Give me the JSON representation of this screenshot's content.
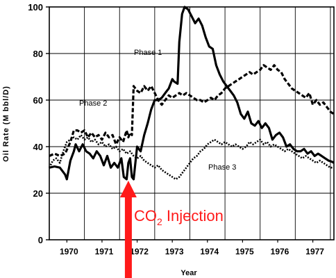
{
  "chart_data": {
    "type": "line",
    "xlabel": "Year",
    "ylabel": "Oil Rate (M bbl/D)",
    "xlim": [
      1969.5,
      1977.6
    ],
    "ylim": [
      0,
      100
    ],
    "grid": true,
    "x_tick_labels": [
      "1970",
      "1971",
      "1972",
      "1973",
      "1974",
      "1975",
      "1976",
      "1977"
    ],
    "y_tick_labels": [
      "0",
      "20",
      "40",
      "60",
      "80",
      "100"
    ],
    "series": [
      {
        "name": "Phase 1",
        "style": "solid",
        "color": "#000000",
        "x": [
          1969.5,
          1969.65,
          1969.8,
          1969.95,
          1970.0,
          1970.1,
          1970.2,
          1970.25,
          1970.35,
          1970.45,
          1970.55,
          1970.65,
          1970.75,
          1970.85,
          1970.95,
          1971.05,
          1971.15,
          1971.25,
          1971.35,
          1971.45,
          1971.55,
          1971.62,
          1971.7,
          1971.75,
          1971.8,
          1971.85,
          1971.9,
          1972.0,
          1972.1,
          1972.2,
          1972.3,
          1972.4,
          1972.5,
          1972.6,
          1972.7,
          1972.8,
          1972.9,
          1973.0,
          1973.05,
          1973.15,
          1973.2,
          1973.28,
          1973.35,
          1973.45,
          1973.55,
          1973.65,
          1973.75,
          1973.85,
          1973.95,
          1974.05,
          1974.15,
          1974.25,
          1974.35,
          1974.45,
          1974.55,
          1974.65,
          1974.75,
          1974.85,
          1974.95,
          1975.05,
          1975.15,
          1975.25,
          1975.35,
          1975.45,
          1975.55,
          1975.65,
          1975.75,
          1975.85,
          1975.95,
          1976.05,
          1976.15,
          1976.25,
          1976.35,
          1976.45,
          1976.55,
          1976.65,
          1976.75,
          1976.85,
          1976.95,
          1977.05,
          1977.15,
          1977.25,
          1977.35,
          1977.45,
          1977.55,
          1977.6
        ],
        "y": [
          31,
          31.5,
          31,
          28,
          26,
          34,
          38,
          41,
          38,
          41,
          38,
          37,
          35,
          38,
          36,
          32,
          36,
          31,
          33,
          31,
          35,
          27,
          26,
          33,
          35,
          27,
          26,
          40,
          38,
          45,
          50,
          56,
          60,
          60,
          61,
          63,
          65,
          69,
          68,
          67,
          85,
          97,
          100,
          99,
          96,
          93,
          95,
          92,
          87,
          83,
          82,
          75,
          71,
          68,
          66,
          64,
          62,
          59,
          54,
          52,
          55,
          50,
          49,
          51,
          48,
          50,
          48,
          43,
          45,
          46,
          44,
          40,
          41,
          39,
          38,
          38,
          39,
          37,
          38,
          36,
          37,
          36,
          35,
          34,
          33.5,
          33
        ]
      },
      {
        "name": "Phase 2",
        "style": "dashed",
        "color": "#000000",
        "x": [
          1969.5,
          1969.65,
          1969.8,
          1969.95,
          1970.1,
          1970.2,
          1970.3,
          1970.4,
          1970.5,
          1970.6,
          1970.7,
          1970.8,
          1970.9,
          1971.0,
          1971.1,
          1971.2,
          1971.3,
          1971.4,
          1971.5,
          1971.6,
          1971.7,
          1971.75,
          1971.8,
          1971.85,
          1971.9,
          1972.0,
          1972.1,
          1972.2,
          1972.3,
          1972.4,
          1972.5,
          1972.6,
          1972.7,
          1972.8,
          1972.9,
          1973.0,
          1973.1,
          1973.2,
          1973.3,
          1973.4,
          1973.5,
          1973.6,
          1973.7,
          1973.8,
          1973.9,
          1974.0,
          1974.1,
          1974.2,
          1974.3,
          1974.4,
          1974.5,
          1974.6,
          1974.7,
          1974.8,
          1974.9,
          1975.0,
          1975.1,
          1975.2,
          1975.3,
          1975.4,
          1975.5,
          1975.6,
          1975.7,
          1975.8,
          1975.9,
          1976.0,
          1976.1,
          1976.2,
          1976.3,
          1976.4,
          1976.5,
          1976.6,
          1976.7,
          1976.8,
          1976.9,
          1977.0,
          1977.1,
          1977.2,
          1977.3,
          1977.4,
          1977.5,
          1977.6
        ],
        "y": [
          36,
          37,
          36,
          37,
          42,
          47,
          47,
          46,
          47,
          44,
          46,
          44,
          45,
          43,
          46,
          44,
          45,
          41,
          44,
          42,
          47,
          44,
          46,
          45,
          66,
          64,
          63,
          66,
          64,
          66,
          63,
          60,
          58,
          60,
          62,
          61,
          62,
          63,
          62,
          63,
          62,
          61,
          60,
          60,
          59,
          60,
          61,
          60,
          62,
          63,
          65,
          66,
          67,
          68,
          69,
          70,
          71,
          72,
          71,
          72,
          73,
          75,
          74,
          73,
          75,
          73,
          72,
          69,
          67,
          65,
          64,
          63,
          62,
          61,
          63,
          58,
          60,
          58,
          59,
          57,
          55,
          54
        ]
      },
      {
        "name": "Phase 3",
        "style": "dotted",
        "color": "#000000",
        "x": [
          1969.5,
          1969.6,
          1969.7,
          1969.8,
          1969.9,
          1970.0,
          1970.1,
          1970.2,
          1970.3,
          1970.4,
          1970.5,
          1970.6,
          1970.7,
          1970.8,
          1970.9,
          1971.0,
          1971.1,
          1971.2,
          1971.3,
          1971.4,
          1971.5,
          1971.6,
          1971.7,
          1971.8,
          1971.9,
          1972.0,
          1972.1,
          1972.2,
          1972.3,
          1972.4,
          1972.5,
          1972.6,
          1972.7,
          1972.8,
          1972.9,
          1973.0,
          1973.1,
          1973.2,
          1973.3,
          1973.4,
          1973.5,
          1973.6,
          1973.7,
          1973.8,
          1973.9,
          1974.0,
          1974.1,
          1974.2,
          1974.3,
          1974.4,
          1974.5,
          1974.6,
          1974.7,
          1974.8,
          1974.9,
          1975.0,
          1975.1,
          1975.2,
          1975.3,
          1975.4,
          1975.5,
          1975.6,
          1975.7,
          1975.8,
          1975.9,
          1976.0,
          1976.1,
          1976.2,
          1976.3,
          1976.4,
          1976.5,
          1976.6,
          1976.7,
          1976.8,
          1976.9,
          1977.0,
          1977.1,
          1977.2,
          1977.3,
          1977.4,
          1977.5,
          1977.6
        ],
        "y": [
          31,
          34,
          35,
          33,
          38,
          42,
          43,
          44,
          43,
          45,
          43,
          44,
          42,
          43,
          41,
          42,
          40,
          41,
          39,
          40,
          38,
          39,
          37,
          38,
          36,
          35,
          36,
          34,
          33,
          32,
          31,
          32,
          30,
          29,
          28,
          27,
          26,
          27,
          29,
          31,
          33,
          35,
          36,
          38,
          39,
          41,
          42,
          43,
          42,
          41,
          42,
          41,
          40,
          41,
          40,
          39,
          40,
          42,
          41,
          42,
          43,
          41,
          42,
          40,
          41,
          40,
          39,
          38,
          39,
          38,
          37,
          36,
          35,
          36,
          35,
          34,
          33,
          34,
          33,
          32,
          31,
          31
        ]
      }
    ],
    "annotations": {
      "phase1_label": "Phase 1",
      "phase2_label": "Phase 2",
      "phase3_label": "Phase 3",
      "co2_main": "CO",
      "co2_sub": "2",
      "co2_rest": " Injection",
      "co2_color": "#ff1a1a",
      "co2_arrow_x": 1971.75
    }
  }
}
